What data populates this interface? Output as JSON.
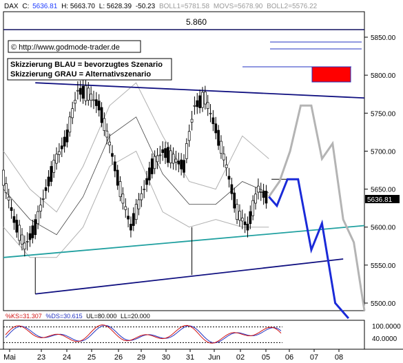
{
  "header": {
    "symbol": "DAX",
    "c_label": "C:",
    "c_value": "5636.81",
    "h": "H: 5663.70",
    "l": "L: 5628.39",
    "chg": "-50.23",
    "boll1": "BOLL1=5781.58",
    "movs": "MOVS=5678.90",
    "boll2": "BOLL2=5576.22"
  },
  "level_label": "5.860",
  "copyright": "© http://www.godmode-trader.de",
  "legend": {
    "blue": "Skizzierung BLAU = bevorzugtes Szenario",
    "grey": "Skizzierung GRAU = Alternativszenario"
  },
  "price_badge": "5636.81",
  "osc_header": {
    "ks": "%KS=31.307",
    "ds": "%DS=30.615",
    "ul": "UL=80.000",
    "ll": "LL=20.000"
  },
  "colors": {
    "blue_scenario": "#1a2ad8",
    "grey_scenario": "#b4b4b4",
    "trendline": "#101080",
    "support": "#20a0a0",
    "target_box": "#ff0000",
    "ks_line": "#d01010",
    "ds_line": "#2030c0"
  },
  "chart_data": {
    "type": "line",
    "title": "",
    "x_tick_labels": [
      "Mai",
      "23",
      "24",
      "25",
      "26",
      "29",
      "30",
      "31",
      "Jun",
      "02",
      "05",
      "06",
      "07",
      "08"
    ],
    "y_ticks": [
      5500,
      5550,
      5600,
      5650,
      5700,
      5750,
      5800,
      5850
    ],
    "ylim": [
      5490,
      5880
    ],
    "oscillator_ticks": [
      "100.0000",
      "40.0000"
    ],
    "series": [
      {
        "x": [
          0,
          4,
          8,
          12,
          16,
          20,
          24,
          28,
          32,
          36,
          40,
          44,
          48,
          52,
          56,
          60,
          64,
          68,
          72,
          76,
          80,
          84,
          88,
          92,
          96,
          100
        ],
        "values": [
          5665,
          5610,
          5575,
          5600,
          5650,
          5690,
          5720,
          5780,
          5775,
          5760,
          5710,
          5650,
          5600,
          5640,
          5680,
          5700,
          5690,
          5680,
          5760,
          5770,
          5730,
          5680,
          5620,
          5600,
          5650,
          5636
        ]
      },
      {
        "x": [
          0,
          10,
          20,
          30,
          40,
          50,
          60,
          70,
          80,
          90,
          100
        ],
        "values": [
          5700,
          5650,
          5620,
          5680,
          5760,
          5790,
          5720,
          5660,
          5650,
          5720,
          5690
        ]
      },
      {
        "x": [
          0,
          10,
          20,
          30,
          40,
          50,
          60,
          70,
          80,
          90,
          100
        ],
        "values": [
          5600,
          5560,
          5560,
          5600,
          5680,
          5700,
          5620,
          5600,
          5610,
          5600,
          5600
        ]
      },
      {
        "x": [
          0,
          10,
          20,
          30,
          40,
          50,
          60,
          70,
          80,
          90,
          100
        ],
        "values": [
          5650,
          5610,
          5590,
          5640,
          5720,
          5745,
          5670,
          5630,
          5630,
          5660,
          5645
        ]
      },
      {
        "x": [
          100,
          103,
          107,
          111,
          116,
          120,
          125,
          130
        ],
        "values": [
          5640,
          5628,
          5663,
          5663,
          5570,
          5605,
          5500,
          5480
        ]
      },
      {
        "x": [
          100,
          104,
          108,
          112,
          116,
          120,
          124,
          128,
          132,
          136
        ],
        "values": [
          5640,
          5660,
          5700,
          5760,
          5760,
          5690,
          5710,
          5610,
          5580,
          5490
        ]
      }
    ],
    "annotations": {
      "upper_trendline": [
        [
          12,
          5790
        ],
        [
          136,
          5770
        ]
      ],
      "lower_trendline": [
        [
          12,
          5512
        ],
        [
          128,
          5558
        ]
      ],
      "support_line": [
        [
          0,
          5560
        ],
        [
          136,
          5602
        ]
      ],
      "horizontal_level": 5860
    }
  }
}
